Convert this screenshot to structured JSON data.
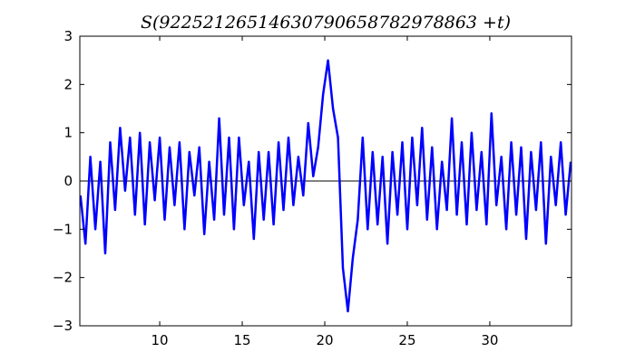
{
  "chart_data": {
    "type": "line",
    "title": "S(92252126514630790658782978863 +t)",
    "xlabel": "",
    "ylabel": "",
    "xlim": [
      5.16,
      34.95
    ],
    "ylim": [
      -3,
      3
    ],
    "xticks": [
      10,
      15,
      20,
      25,
      30
    ],
    "yticks": [
      -3,
      -2,
      -1,
      0,
      1,
      2,
      3
    ],
    "xtick_labels": [
      "10",
      "15",
      "20",
      "25",
      "30"
    ],
    "ytick_labels": [
      "−3",
      "−2",
      "−1",
      "0",
      "1",
      "2",
      "3"
    ],
    "grid": false,
    "zero_line": true,
    "line_color": "#0000ff",
    "series": [
      {
        "x": [
          5.2,
          5.5,
          5.8,
          6.1,
          6.4,
          6.7,
          7.0,
          7.3,
          7.6,
          7.9,
          8.2,
          8.5,
          8.8,
          9.1,
          9.4,
          9.7,
          10.0,
          10.3,
          10.6,
          10.9,
          11.2,
          11.5,
          11.8,
          12.1,
          12.4,
          12.7,
          13.0,
          13.3,
          13.6,
          13.9,
          14.2,
          14.5,
          14.8,
          15.1,
          15.4,
          15.7,
          16.0,
          16.3,
          16.6,
          16.9,
          17.2,
          17.5,
          17.8,
          18.1,
          18.4,
          18.7,
          19.0,
          19.3,
          19.6,
          19.9,
          20.2,
          20.5,
          20.8,
          21.1,
          21.4,
          21.7,
          22.0,
          22.3,
          22.6,
          22.9,
          23.2,
          23.5,
          23.8,
          24.1,
          24.4,
          24.7,
          25.0,
          25.3,
          25.6,
          25.9,
          26.2,
          26.5,
          26.8,
          27.1,
          27.4,
          27.7,
          28.0,
          28.3,
          28.6,
          28.9,
          29.2,
          29.5,
          29.8,
          30.1,
          30.4,
          30.7,
          31.0,
          31.3,
          31.6,
          31.9,
          32.2,
          32.5,
          32.8,
          33.1,
          33.4,
          33.7,
          34.0,
          34.3,
          34.6,
          34.9
        ],
        "y": [
          -0.3,
          -1.3,
          0.5,
          -1.0,
          0.4,
          -1.5,
          0.8,
          -0.6,
          1.1,
          -0.2,
          0.9,
          -0.7,
          1.0,
          -0.9,
          0.8,
          -0.4,
          0.9,
          -0.8,
          0.7,
          -0.5,
          0.8,
          -1.0,
          0.6,
          -0.3,
          0.7,
          -1.1,
          0.4,
          -0.8,
          1.3,
          -0.7,
          0.9,
          -1.0,
          0.9,
          -0.5,
          0.4,
          -1.2,
          0.6,
          -0.8,
          0.6,
          -0.9,
          0.8,
          -0.6,
          0.9,
          -0.5,
          0.5,
          -0.3,
          1.2,
          0.1,
          0.7,
          1.8,
          2.5,
          1.5,
          0.9,
          -1.8,
          -2.7,
          -1.6,
          -0.8,
          0.9,
          -1.0,
          0.6,
          -0.9,
          0.5,
          -1.3,
          0.6,
          -0.7,
          0.8,
          -1.0,
          0.9,
          -0.5,
          1.1,
          -0.8,
          0.7,
          -1.0,
          0.4,
          -0.6,
          1.3,
          -0.7,
          0.8,
          -0.9,
          1.0,
          -0.6,
          0.6,
          -0.9,
          1.4,
          -0.5,
          0.5,
          -1.0,
          0.8,
          -0.7,
          0.7,
          -1.2,
          0.6,
          -0.6,
          0.8,
          -1.3,
          0.5,
          -0.5,
          0.8,
          -0.7,
          0.4
        ]
      }
    ]
  }
}
